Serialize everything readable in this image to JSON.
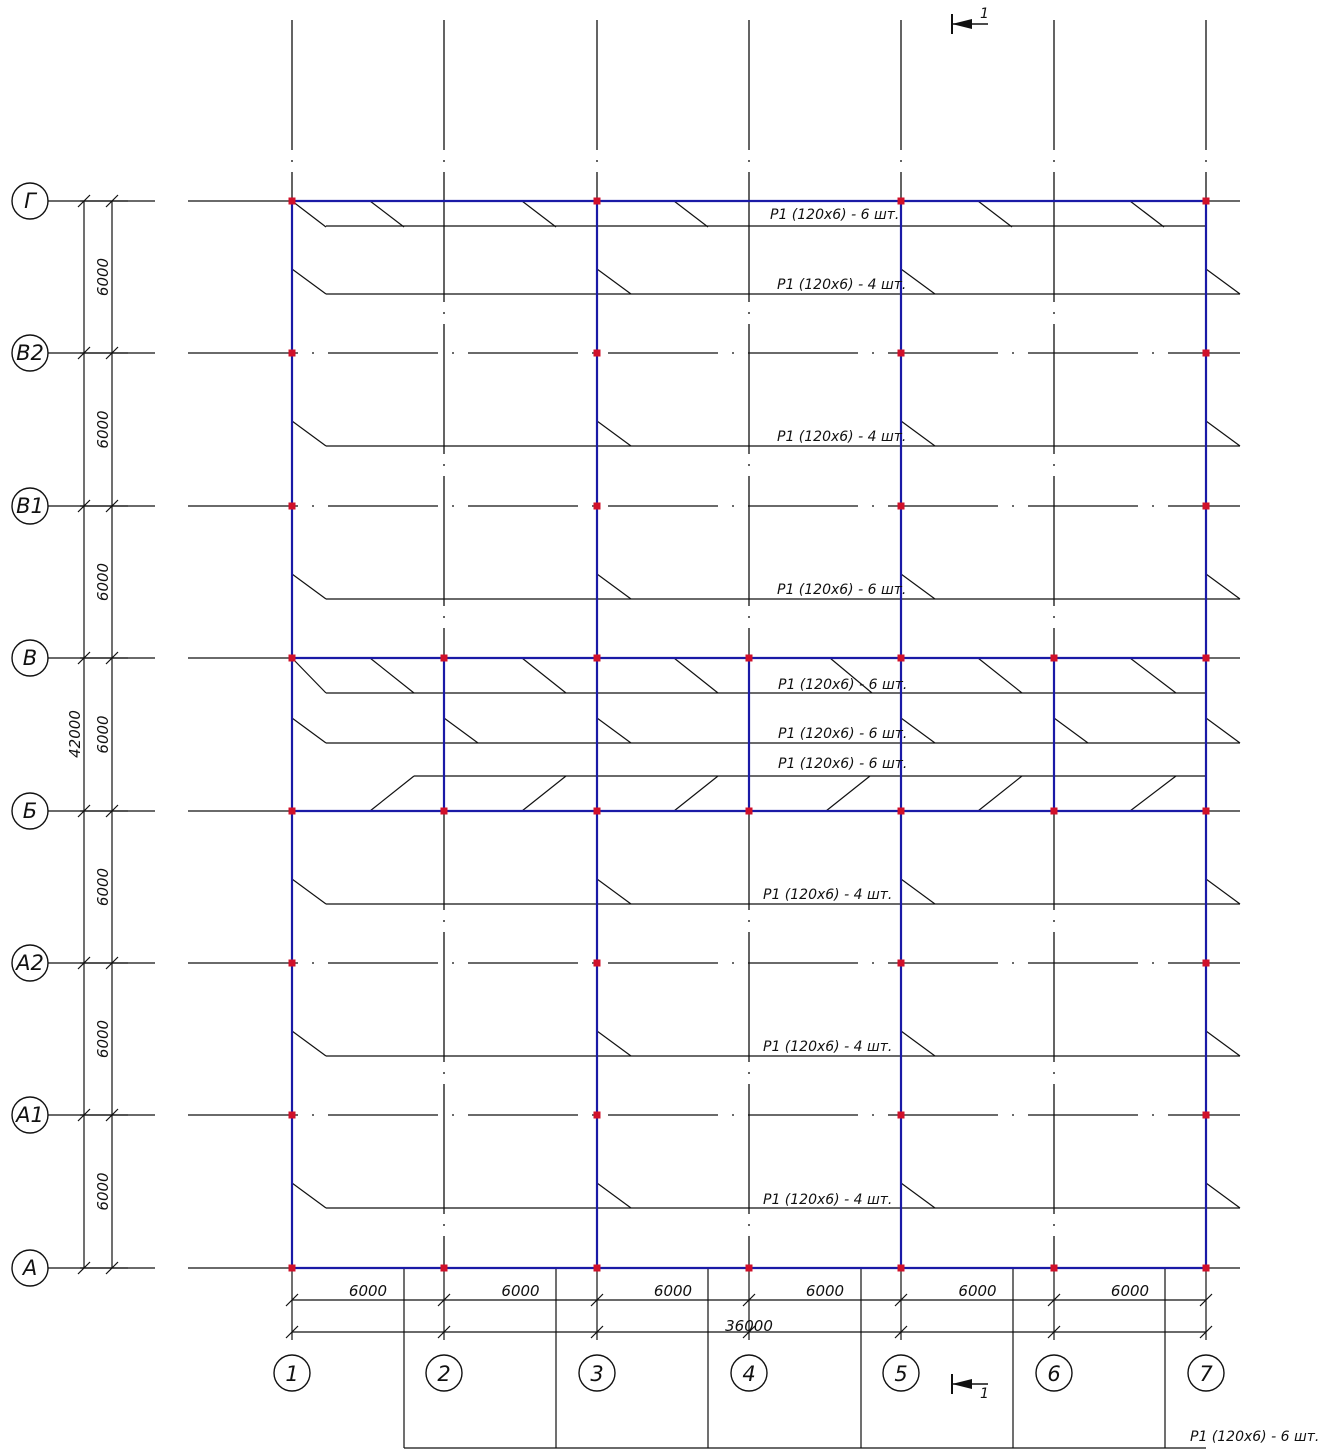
{
  "columns": [
    "1",
    "2",
    "3",
    "4",
    "5",
    "6",
    "7"
  ],
  "rows": [
    "Г",
    "В2",
    "В1",
    "В",
    "Б",
    "А2",
    "А1",
    "А"
  ],
  "dimensions": {
    "bay": "6000",
    "overall_horizontal": "36000",
    "overall_vertical": "42000"
  },
  "section_marker": "1",
  "notes": [
    "Р1 (120х6) - 6 шт.",
    "Р1 (120х6) - 4 шт.",
    "Р1 (120х6) - 4 шт.",
    "Р1 (120х6) - 6 шт.",
    "Р1 (120х6) - 6 шт.",
    "Р1 (120х6) - 6 шт.",
    "Р1 (120х6) - 6 шт.",
    "Р1 (120х6) - 4 шт.",
    "Р1 (120х6) - 4 шт.",
    "Р1 (120х6) - 4 шт.",
    "Р1 (120х6) - 6 шт."
  ],
  "colors": {
    "grid": "#111111",
    "beams": "#1a1aa6",
    "nodes": "#d0102a"
  }
}
